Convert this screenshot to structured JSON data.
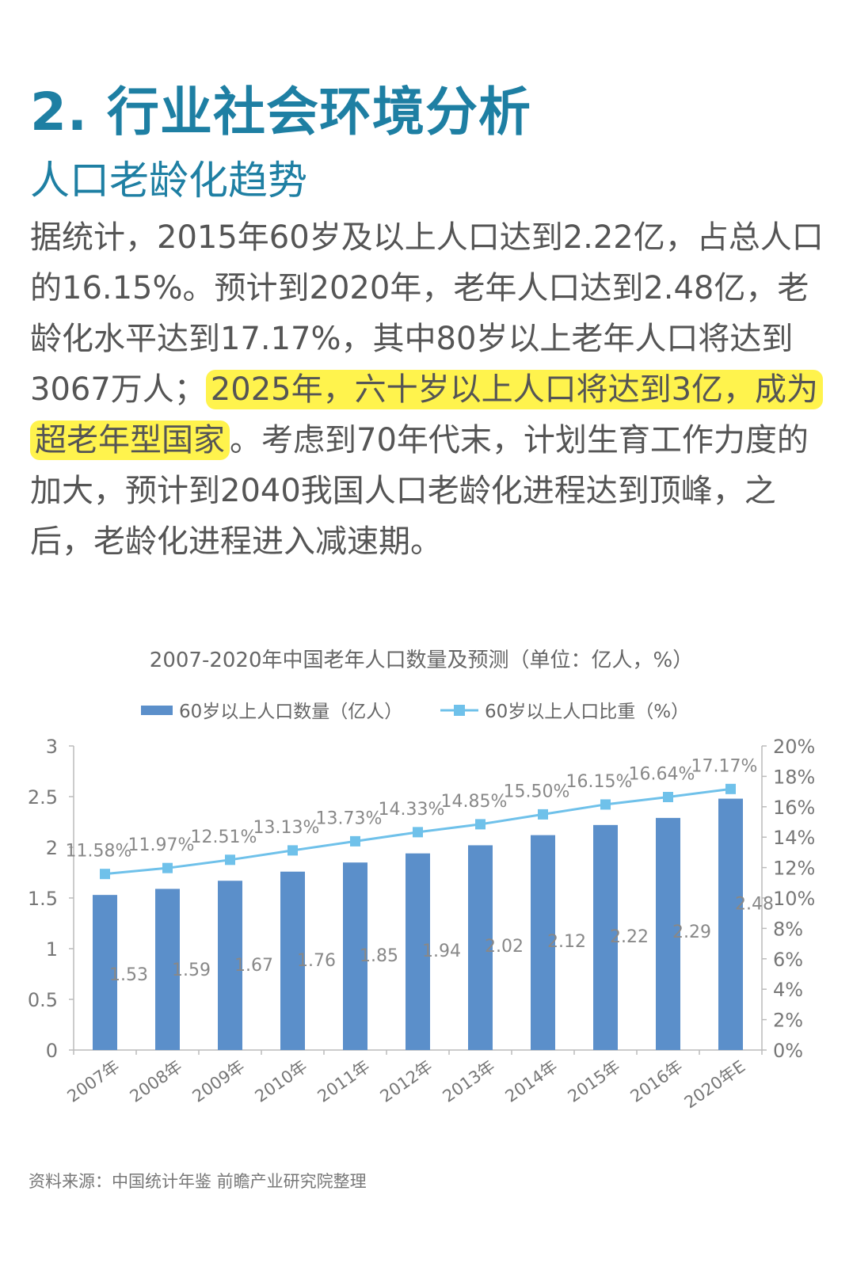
{
  "heading": "2. 行业社会环境分析",
  "subheading": "人口老龄化趋势",
  "paragraph": {
    "before": "据统计，2015年60岁及以上人口达到2.22亿，占总人口的16.15%。预计到2020年，老年人口达到2.48亿，老龄化水平达到17.17%，其中80岁以上老年人口将达到3067万人；",
    "highlight": "2025年，六十岁以上人口将达到3亿，成为超老年型国家",
    "after": "。考虑到70年代末，计划生育工作力度的加大，预计到2040我国人口老龄化进程达到顶峰，之后，老龄化进程进入减速期。"
  },
  "source": "资料来源：中国统计年鉴 前瞻产业研究院整理",
  "colors": {
    "accent": "#1e7fa3",
    "bar": "#5b8fca",
    "line": "#6fc1ea",
    "highlight": "#fff34d"
  },
  "chart_data": {
    "type": "bar+line",
    "title": "2007-2020年中国老年人口数量及预测（单位：亿人，%）",
    "categories": [
      "2007年",
      "2008年",
      "2009年",
      "2010年",
      "2011年",
      "2012年",
      "2013年",
      "2014年",
      "2015年",
      "2016年",
      "2020年E"
    ],
    "series": [
      {
        "name": "60岁以上人口数量（亿人）",
        "type": "bar",
        "axis": "left",
        "values": [
          1.53,
          1.59,
          1.67,
          1.76,
          1.85,
          1.94,
          2.02,
          2.12,
          2.22,
          2.29,
          2.48
        ],
        "labels": [
          "1.53",
          "1.59",
          "1.67",
          "1.76",
          "1.85",
          "1.94",
          "2.02",
          "2.12",
          "2.22",
          "2.29",
          "2.48"
        ]
      },
      {
        "name": "60岁以上人口比重（%）",
        "type": "line",
        "axis": "right",
        "marker": "square",
        "values": [
          11.58,
          11.97,
          12.51,
          13.13,
          13.73,
          14.33,
          14.85,
          15.5,
          16.15,
          16.64,
          17.17
        ],
        "labels": [
          "11.58%",
          "11.97%",
          "12.51%",
          "13.13%",
          "13.73%",
          "14.33%",
          "14.85%",
          "15.50%",
          "16.15%",
          "16.64%",
          "17.17%"
        ]
      }
    ],
    "y_left": {
      "lim": [
        0,
        3
      ],
      "ticks": [
        0,
        0.5,
        1,
        1.5,
        2,
        2.5,
        3
      ],
      "tick_labels": [
        "0",
        "0.5",
        "1",
        "1.5",
        "2",
        "2.5",
        "3"
      ]
    },
    "y_right": {
      "lim": [
        0,
        20
      ],
      "ticks": [
        0,
        2,
        4,
        6,
        8,
        10,
        12,
        14,
        16,
        18,
        20
      ],
      "tick_labels": [
        "0%",
        "2%",
        "4%",
        "6%",
        "8%",
        "10%",
        "12%",
        "14%",
        "16%",
        "18%",
        "20%"
      ]
    },
    "legend": "top-center",
    "grid": false
  }
}
